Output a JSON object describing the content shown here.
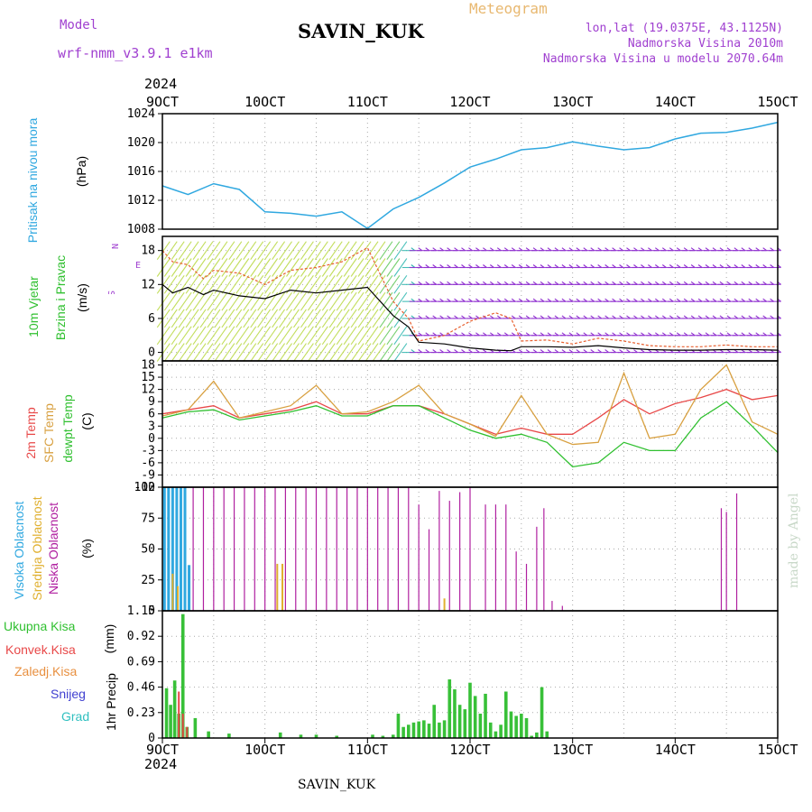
{
  "header": {
    "title": "SAVIN_KUK",
    "model_label": "Model",
    "model_name": "wrf-nmm_v3.9.1 e1km",
    "meteogram_label": "Meteogram",
    "info_lonlat": "lon,lat (19.0375E, 43.1125N)",
    "info_elev": "Nadmorska Visina 2010m",
    "info_elev_model": "Nadmorska Visina u modelu 2070.64m",
    "year": "2024",
    "footer": "SAVIN_KUK",
    "credit": "made by Angel"
  },
  "colors": {
    "pressure": "#30a8e0",
    "temp2m": "#e84848",
    "sfc": "#d8a040",
    "dewpt": "#30c030",
    "high_cloud": "#30a8e0",
    "mid_cloud": "#e0b030",
    "low_cloud": "#b020a0",
    "precip": "#38c038",
    "conv": "#e84848"
  },
  "chart_data": [
    {
      "type": "line",
      "panel": "pressure",
      "ylabel_1": "Pritisak na nivou mora",
      "ylabel_2": "(hPa)",
      "x_ticks": [
        "9OCT",
        "10OCT",
        "11OCT",
        "12OCT",
        "13OCT",
        "14OCT",
        "15OCT"
      ],
      "ylim": [
        1008,
        1024
      ],
      "y_ticks": [
        1008,
        1012,
        1016,
        1020,
        1024
      ],
      "x_days": [
        9,
        9.25,
        9.5,
        9.75,
        10,
        10.25,
        10.5,
        10.75,
        11,
        11.25,
        11.5,
        11.75,
        12,
        12.25,
        12.5,
        12.75,
        13,
        13.25,
        13.5,
        13.75,
        14,
        14.25,
        14.5,
        14.75,
        15
      ],
      "series": [
        {
          "key": "pressure",
          "values": [
            1014,
            1012.8,
            1014.3,
            1013.5,
            1010.4,
            1010.2,
            1009.8,
            1010.4,
            1008.1,
            1010.8,
            1012.4,
            1014.4,
            1016.6,
            1017.7,
            1019,
            1019.3,
            1020.1,
            1019.5,
            1019,
            1019.3,
            1020.5,
            1021.3,
            1021.4,
            1022,
            1022.8
          ]
        }
      ]
    },
    {
      "type": "line",
      "panel": "wind",
      "ylabel_1": "10m Vjetar",
      "ylabel_2": "Brzina i Pravac",
      "ylabel_3": "(m/s)",
      "compass_w": "W",
      "compass_e": "E",
      "compass_n": "N",
      "compass_s": "S",
      "ylim": [
        -1.5,
        20.5
      ],
      "y_ticks": [
        0,
        6,
        12,
        18
      ],
      "x_days": [
        9,
        9.1,
        9.25,
        9.4,
        9.5,
        9.75,
        10,
        10.25,
        10.5,
        10.75,
        11,
        11.25,
        11.4,
        11.5,
        11.75,
        12,
        12.25,
        12.4,
        12.5,
        12.75,
        13,
        13.25,
        13.5,
        13.75,
        14,
        14.25,
        14.5,
        14.75,
        15
      ],
      "series": [
        {
          "name": "speed",
          "values": [
            12,
            10.5,
            11.5,
            10.2,
            11,
            10,
            9.5,
            11,
            10.5,
            11,
            11.5,
            6.5,
            4.5,
            1.8,
            1.5,
            0.8,
            0.4,
            0.3,
            1,
            1,
            0.9,
            1.2,
            0.8,
            0.5,
            0.4,
            0.4,
            0.5,
            0.5,
            0.4
          ]
        },
        {
          "name": "gust",
          "values": [
            18,
            16,
            15.5,
            13,
            14.5,
            14,
            12,
            14.5,
            15,
            16,
            18.5,
            9,
            6,
            2,
            3,
            5.5,
            7,
            6,
            2,
            2.2,
            1.5,
            2.5,
            2,
            1.2,
            1,
            1,
            1.3,
            1,
            1
          ]
        }
      ]
    },
    {
      "type": "line",
      "panel": "temperature",
      "ylabel_1": "2m Temp",
      "ylabel_2": "SFC Temp",
      "ylabel_3": "dewpt Temp",
      "ylabel_4": "(C)",
      "ylim": [
        -12,
        19
      ],
      "y_ticks": [
        -12,
        -9,
        -6,
        -3,
        0,
        3,
        6,
        9,
        12,
        15,
        18
      ],
      "x_days": [
        9,
        9.25,
        9.5,
        9.75,
        10,
        10.25,
        10.5,
        10.75,
        11,
        11.25,
        11.5,
        11.75,
        12,
        12.25,
        12.5,
        12.75,
        13,
        13.25,
        13.5,
        13.75,
        14,
        14.25,
        14.5,
        14.75,
        15
      ],
      "series": [
        {
          "key": "temp2m",
          "values": [
            6,
            7,
            8,
            5,
            6,
            7,
            9,
            6,
            6,
            8,
            8,
            6,
            3.5,
            1,
            2.5,
            1,
            1,
            5,
            9.5,
            6,
            8.5,
            10,
            12,
            9.5,
            10.5
          ]
        },
        {
          "key": "sfc",
          "values": [
            5.5,
            7,
            14,
            5,
            6.5,
            8,
            13,
            6,
            6.5,
            9,
            13,
            6,
            3.5,
            0.5,
            10.5,
            1,
            -1.5,
            -1,
            16,
            0,
            1,
            12,
            18,
            4,
            1
          ]
        },
        {
          "key": "dewpt",
          "values": [
            5,
            6.5,
            7,
            4.5,
            5.5,
            6.5,
            8,
            5.5,
            5.5,
            8,
            8,
            5,
            2,
            0,
            1,
            -1,
            -7,
            -6,
            -1,
            -3,
            -3,
            5,
            9,
            3,
            -3.5
          ]
        }
      ]
    },
    {
      "type": "bar",
      "panel": "cloud",
      "ylabel_1": "Visoka Oblacnost",
      "ylabel_2": "Srednja Oblacnost",
      "ylabel_3": "Niska Oblacnost",
      "ylabel_4": "(%)",
      "ylim": [
        0,
        100
      ],
      "y_ticks": [
        0,
        25,
        50,
        75,
        100
      ],
      "high": {
        "x": [
          9.02,
          9.06,
          9.1,
          9.14,
          9.18,
          9.22,
          9.26
        ],
        "values": [
          100,
          100,
          100,
          100,
          100,
          100,
          37
        ]
      },
      "mid": {
        "x": [
          9.1,
          9.15,
          10.12,
          10.17,
          11.75
        ],
        "values": [
          30,
          20,
          38,
          38,
          10
        ]
      },
      "low": {
        "x": [
          9.3,
          9.4,
          9.5,
          9.6,
          9.7,
          9.8,
          9.9,
          10,
          10.1,
          10.2,
          10.3,
          10.4,
          10.5,
          10.6,
          10.7,
          10.8,
          10.9,
          11,
          11.1,
          11.2,
          11.3,
          11.4,
          11.5,
          11.6,
          11.7,
          11.8,
          11.9,
          12,
          12.15,
          12.25,
          12.35,
          12.45,
          12.55,
          12.65,
          12.72,
          12.8,
          12.9,
          14.45,
          14.5,
          14.6
        ],
        "values": [
          100,
          100,
          100,
          100,
          100,
          100,
          100,
          100,
          100,
          100,
          100,
          100,
          100,
          100,
          100,
          100,
          100,
          100,
          100,
          100,
          100,
          100,
          86,
          66,
          97,
          89,
          96,
          100,
          86,
          86,
          86,
          48,
          38,
          68,
          83,
          8,
          4,
          83,
          80,
          95
        ]
      }
    },
    {
      "type": "bar",
      "panel": "precip",
      "ylabel_1": "1hr Precip",
      "ylabel_2": "(mm)",
      "legend": [
        "Ukupna Kisa",
        "Konvek.Kisa",
        "Zaledj.Kisa",
        "Snijeg",
        "Grad"
      ],
      "ylim": [
        0,
        1.15
      ],
      "y_ticks": [
        0,
        0.23,
        0.46,
        0.69,
        0.92,
        1.15
      ],
      "x_ticks": [
        "9OCT",
        "10OCT",
        "11OCT",
        "12OCT",
        "13OCT",
        "14OCT",
        "15OCT"
      ],
      "total": {
        "x": [
          9.04,
          9.08,
          9.12,
          9.16,
          9.2,
          9.24,
          9.32,
          9.45,
          9.65,
          10.15,
          10.35,
          10.5,
          10.7,
          11.05,
          11.15,
          11.25,
          11.3,
          11.35,
          11.4,
          11.45,
          11.5,
          11.55,
          11.6,
          11.65,
          11.7,
          11.75,
          11.8,
          11.85,
          11.9,
          11.95,
          12,
          12.05,
          12.1,
          12.15,
          12.2,
          12.25,
          12.3,
          12.35,
          12.4,
          12.45,
          12.5,
          12.55,
          12.6,
          12.65,
          12.7,
          12.75
        ],
        "values": [
          0.45,
          0.3,
          0.52,
          0.22,
          1.12,
          0.1,
          0.18,
          0.06,
          0.04,
          0.05,
          0.03,
          0.03,
          0.02,
          0.03,
          0.02,
          0.03,
          0.22,
          0.1,
          0.12,
          0.14,
          0.15,
          0.16,
          0.13,
          0.3,
          0.14,
          0.16,
          0.53,
          0.44,
          0.3,
          0.26,
          0.5,
          0.38,
          0.22,
          0.4,
          0.14,
          0.06,
          0.12,
          0.42,
          0.24,
          0.2,
          0.22,
          0.18,
          0.02,
          0.05,
          0.46,
          0.06
        ]
      },
      "conv": {
        "x": [
          9.16,
          9.2,
          9.24
        ],
        "values": [
          0.42,
          0.22,
          0.1
        ]
      }
    }
  ]
}
